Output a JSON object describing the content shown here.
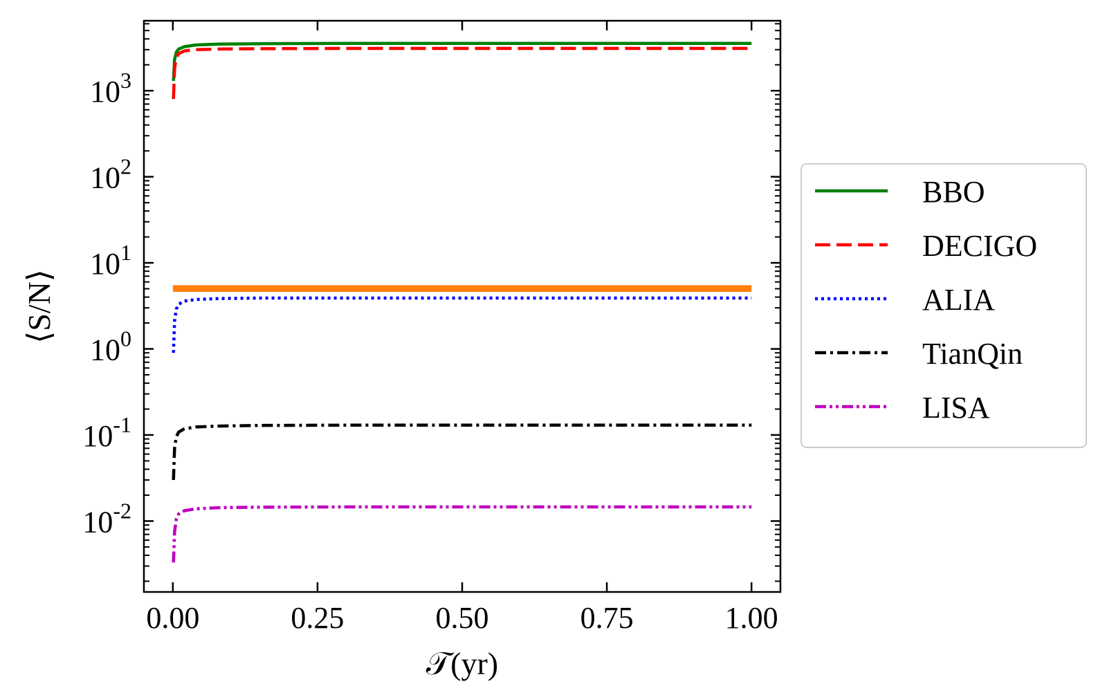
{
  "chart_data": {
    "type": "line",
    "title": "",
    "xlabel": "𝒯(yr)",
    "ylabel": "⟨S/N⟩",
    "xscale": "linear",
    "yscale": "log",
    "xlim": [
      -0.05,
      1.05
    ],
    "ylim": [
      0.0015,
      6500
    ],
    "x_ticks": [
      {
        "value": 0.0,
        "label": "0.00"
      },
      {
        "value": 0.25,
        "label": "0.25"
      },
      {
        "value": 0.5,
        "label": "0.50"
      },
      {
        "value": 0.75,
        "label": "0.75"
      },
      {
        "value": 1.0,
        "label": "1.00"
      }
    ],
    "y_ticks": [
      {
        "value": 0.01,
        "base": "10",
        "exp": "-2"
      },
      {
        "value": 0.1,
        "base": "10",
        "exp": "-1"
      },
      {
        "value": 1,
        "base": "10",
        "exp": "0"
      },
      {
        "value": 10,
        "base": "10",
        "exp": "1"
      },
      {
        "value": 100,
        "base": "10",
        "exp": "2"
      },
      {
        "value": 1000,
        "base": "10",
        "exp": "3"
      }
    ],
    "grid": false,
    "legend_position": "outside-right",
    "series": [
      {
        "name": "BBO",
        "color": "#008000",
        "dash": "solid",
        "x": [
          0.001,
          0.003,
          0.006,
          0.01,
          0.02,
          0.04,
          0.08,
          0.15,
          0.3,
          0.5,
          0.75,
          1.0
        ],
        "y": [
          1300,
          2300,
          2800,
          3050,
          3250,
          3400,
          3480,
          3520,
          3540,
          3550,
          3550,
          3550
        ]
      },
      {
        "name": "DECIGO",
        "color": "#ff0000",
        "dash": "dashed",
        "x": [
          0.001,
          0.003,
          0.006,
          0.01,
          0.02,
          0.04,
          0.08,
          0.15,
          0.3,
          0.5,
          0.75,
          1.0
        ],
        "y": [
          800,
          1800,
          2400,
          2700,
          2900,
          3000,
          3050,
          3080,
          3100,
          3100,
          3100,
          3100
        ]
      },
      {
        "name": "ALIA",
        "color": "#0000ff",
        "dash": "dotted",
        "x": [
          0.001,
          0.003,
          0.006,
          0.01,
          0.02,
          0.04,
          0.08,
          0.15,
          0.3,
          0.5,
          0.75,
          1.0
        ],
        "y": [
          0.9,
          2.1,
          2.9,
          3.3,
          3.6,
          3.75,
          3.85,
          3.9,
          3.9,
          3.9,
          3.9,
          3.9
        ]
      },
      {
        "name": "TianQin",
        "color": "#000000",
        "dash": "dashdot",
        "x": [
          0.001,
          0.003,
          0.006,
          0.01,
          0.02,
          0.04,
          0.08,
          0.15,
          0.3,
          0.5,
          0.75,
          1.0
        ],
        "y": [
          0.03,
          0.07,
          0.095,
          0.108,
          0.118,
          0.124,
          0.127,
          0.129,
          0.13,
          0.13,
          0.13,
          0.13
        ]
      },
      {
        "name": "LISA",
        "color": "#bf00bf",
        "dash": "dashdotdot",
        "x": [
          0.001,
          0.003,
          0.006,
          0.01,
          0.02,
          0.04,
          0.08,
          0.15,
          0.3,
          0.5,
          0.75,
          1.0
        ],
        "y": [
          0.0033,
          0.0075,
          0.0105,
          0.0121,
          0.0132,
          0.0139,
          0.0143,
          0.0145,
          0.0146,
          0.0146,
          0.0146,
          0.0146
        ]
      }
    ],
    "annotations": [
      {
        "kind": "horizontal-band",
        "color": "#ff7f0e",
        "x": [
          0.0,
          1.0
        ],
        "y_low": 4.6,
        "y_high": 5.5
      }
    ]
  }
}
